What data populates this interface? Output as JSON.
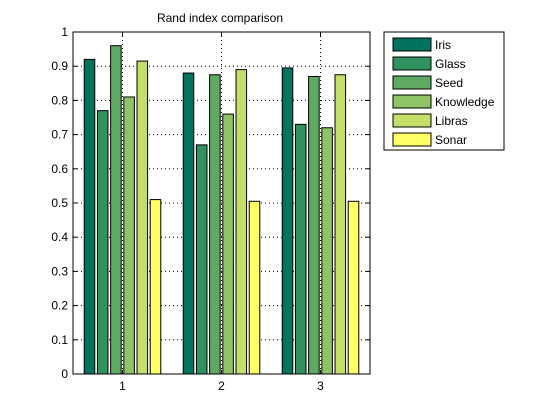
{
  "chart_data": {
    "type": "bar",
    "title": "Rand index comparison",
    "xlabel": "",
    "ylabel": "",
    "categories": [
      "1",
      "2",
      "3"
    ],
    "ylim": [
      0,
      1
    ],
    "yticks": [
      0,
      0.1,
      0.2,
      0.3,
      0.4,
      0.5,
      0.6,
      0.7,
      0.8,
      0.9,
      1
    ],
    "ytick_labels": [
      "0",
      "0.1",
      "0.2",
      "0.3",
      "0.4",
      "0.5",
      "0.6",
      "0.7",
      "0.8",
      "0.9",
      "1"
    ],
    "grid": true,
    "legend_position": "outside-top-right",
    "series": [
      {
        "name": "Iris",
        "color": "#00745e",
        "values": [
          0.92,
          0.88,
          0.895
        ]
      },
      {
        "name": "Glass",
        "color": "#2f925f",
        "values": [
          0.77,
          0.67,
          0.73
        ]
      },
      {
        "name": "Seed",
        "color": "#5faa62",
        "values": [
          0.96,
          0.875,
          0.87
        ]
      },
      {
        "name": "Knowledge",
        "color": "#8ec465",
        "values": [
          0.81,
          0.76,
          0.72
        ]
      },
      {
        "name": "Libras",
        "color": "#c4df67",
        "values": [
          0.915,
          0.89,
          0.875
        ]
      },
      {
        "name": "Sonar",
        "color": "#ffff66",
        "values": [
          0.51,
          0.505,
          0.505
        ]
      }
    ]
  }
}
